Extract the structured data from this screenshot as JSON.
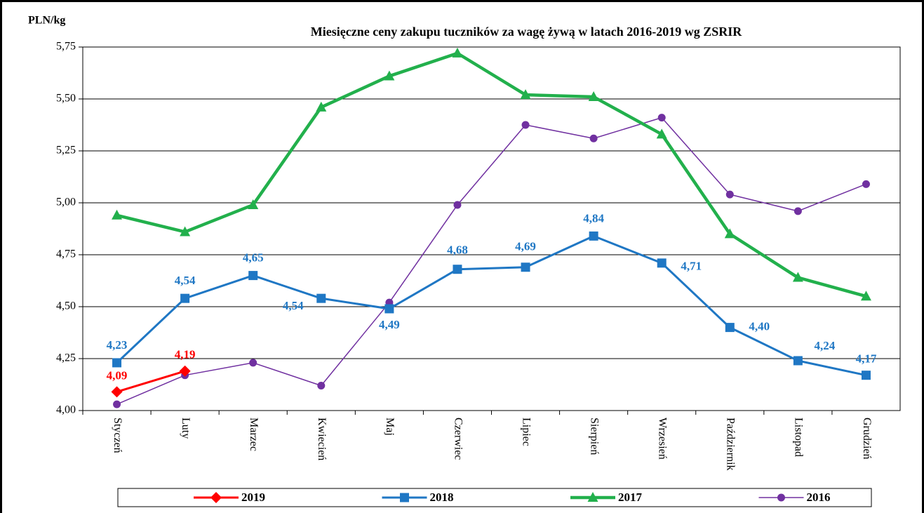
{
  "chart_data": {
    "type": "line",
    "title": "Miesięczne ceny zakupu tuczników za wagę żywą w latach 2016-2019 wg ZSRIR",
    "y_label": "PLN/kg",
    "categories": [
      "Styczeń",
      "Luty",
      "Marzec",
      "Kwiecień",
      "Maj",
      "Czerwiec",
      "Lipiec",
      "Sierpień",
      "Wrzesień",
      "Październik",
      "Listopad",
      "Grudzień"
    ],
    "ylim": [
      4.0,
      5.75
    ],
    "yticks": [
      {
        "value": 4.0,
        "label": "4,00"
      },
      {
        "value": 4.25,
        "label": "4,25"
      },
      {
        "value": 4.5,
        "label": "4,50"
      },
      {
        "value": 4.75,
        "label": "4,75"
      },
      {
        "value": 5.0,
        "label": "5,00"
      },
      {
        "value": 5.25,
        "label": "5,25"
      },
      {
        "value": 5.5,
        "label": "5,50"
      },
      {
        "value": 5.75,
        "label": "5,75"
      }
    ],
    "grid": true,
    "legend": "bottom",
    "series": [
      {
        "name": "2019",
        "color": "#ff0000",
        "marker": "diamond",
        "line_width": 3,
        "values": [
          4.09,
          4.19,
          null,
          null,
          null,
          null,
          null,
          null,
          null,
          null,
          null,
          null
        ],
        "value_labels": [
          "4,09",
          "4,19",
          null,
          null,
          null,
          null,
          null,
          null,
          null,
          null,
          null,
          null
        ]
      },
      {
        "name": "2018",
        "color": "#1f77c4",
        "marker": "square",
        "line_width": 3,
        "values": [
          4.23,
          4.54,
          4.65,
          4.54,
          4.49,
          4.68,
          4.69,
          4.84,
          4.71,
          4.4,
          4.24,
          4.17
        ],
        "value_labels": [
          "4,23",
          "4,54",
          "4,65",
          "4,54",
          "4,49",
          "4,68",
          "4,69",
          "4,84",
          "4,71",
          "4,40",
          "4,24",
          "4,17"
        ]
      },
      {
        "name": "2017",
        "color": "#22b04c",
        "marker": "triangle",
        "line_width": 4.5,
        "values": [
          4.94,
          4.86,
          4.99,
          5.46,
          5.61,
          5.72,
          5.52,
          5.51,
          5.33,
          4.85,
          4.64,
          4.55
        ]
      },
      {
        "name": "2016",
        "color": "#7030a0",
        "marker": "circle",
        "line_width": 1.5,
        "values": [
          4.03,
          4.17,
          4.23,
          4.12,
          4.52,
          4.99,
          5.375,
          5.31,
          5.41,
          5.04,
          4.96,
          5.09
        ]
      }
    ]
  }
}
